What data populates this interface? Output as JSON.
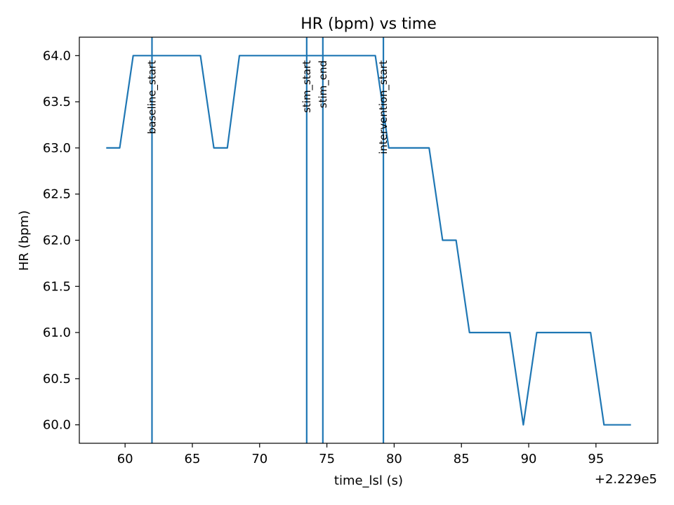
{
  "chart_data": {
    "type": "line",
    "title": "HR (bpm) vs time",
    "xlabel": "time_lsl (s)",
    "ylabel": "HR (bpm)",
    "x_offset_label": "+2.229e5",
    "xlim": [
      56.6,
      99.6
    ],
    "ylim": [
      59.8,
      64.2
    ],
    "x_ticks": [
      60,
      65,
      70,
      75,
      80,
      85,
      90,
      95
    ],
    "x_tick_labels": [
      "60",
      "65",
      "70",
      "75",
      "80",
      "85",
      "90",
      "95"
    ],
    "y_ticks": [
      60.0,
      60.5,
      61.0,
      61.5,
      62.0,
      62.5,
      63.0,
      63.5,
      64.0
    ],
    "y_tick_labels": [
      "60.0",
      "60.5",
      "61.0",
      "61.5",
      "62.0",
      "62.5",
      "63.0",
      "63.5",
      "64.0"
    ],
    "grid": false,
    "color": "#1f77b4",
    "series": [
      {
        "x": [
          58.6,
          59.6,
          60.6,
          61.6,
          62.6,
          63.6,
          64.6,
          65.6,
          66.6,
          67.6,
          68.5,
          69.5,
          70.5,
          71.5,
          72.5,
          73.5,
          74.5,
          75.5,
          76.5,
          77.6,
          78.6,
          79.6,
          80.6,
          81.6,
          82.6,
          83.6,
          84.6,
          85.6,
          86.6,
          87.6,
          88.6,
          89.6,
          90.6,
          91.6,
          92.6,
          93.6,
          94.6,
          95.6,
          96.6,
          97.6
        ],
        "y": [
          63,
          63,
          64,
          64,
          64,
          64,
          64,
          64,
          63,
          63,
          64,
          64,
          64,
          64,
          64,
          64,
          64,
          64,
          64,
          64,
          64,
          63,
          63,
          63,
          63,
          62,
          62,
          61,
          61,
          61,
          61,
          60,
          61,
          61,
          61,
          61,
          61,
          60,
          60,
          60
        ]
      }
    ],
    "events": [
      {
        "label": "baseline_start",
        "x": 62.0
      },
      {
        "label": "stim_start",
        "x": 73.5
      },
      {
        "label": "stim_end",
        "x": 74.7
      },
      {
        "label": "intervention_start",
        "x": 79.2
      }
    ]
  }
}
